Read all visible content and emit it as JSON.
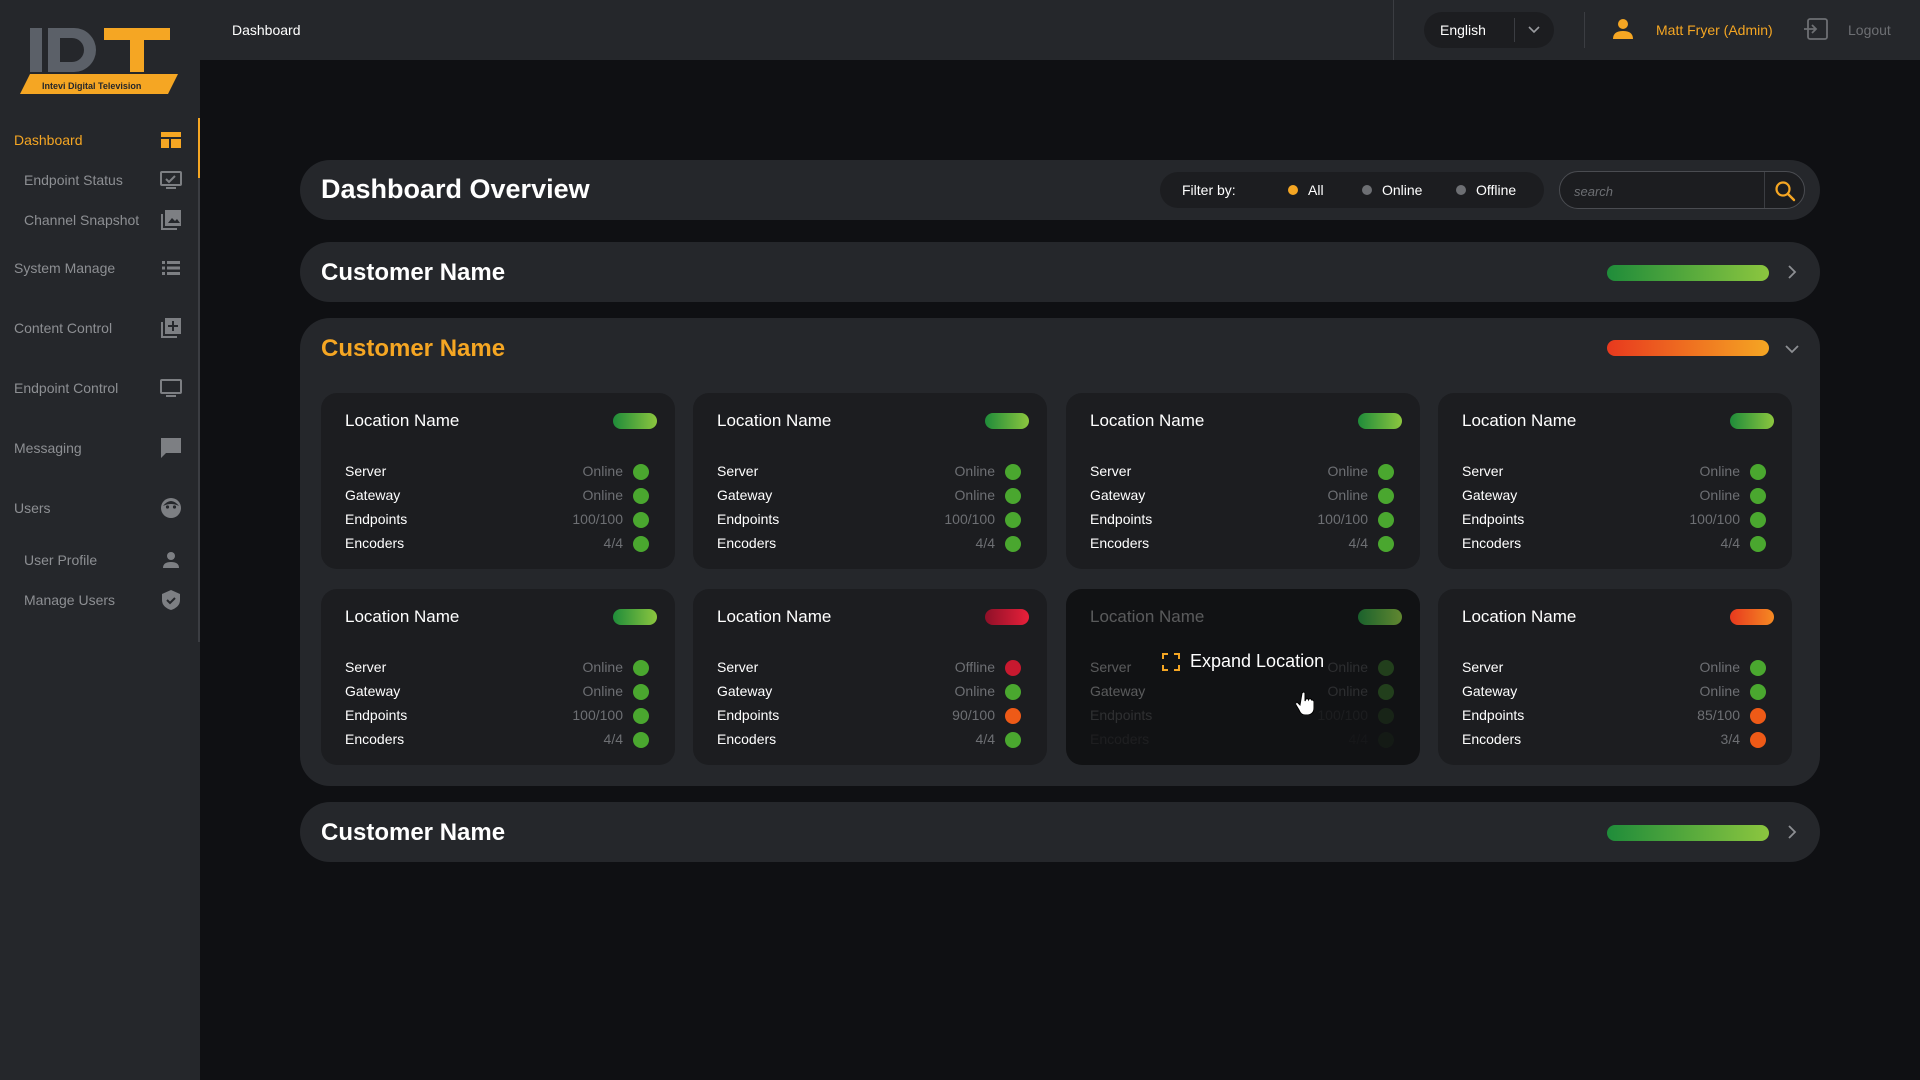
{
  "brand": {
    "logo_text": "IDT",
    "logo_tagline": "Intevi Digital Television",
    "accent_color": "#f5a623"
  },
  "sidebar": {
    "items": [
      {
        "label": "Dashboard",
        "icon": "dashboard-icon",
        "active": true
      },
      {
        "label": "Endpoint Status",
        "icon": "monitor-check-icon"
      },
      {
        "label": "Channel Snapshot",
        "icon": "image-stack-icon"
      },
      {
        "label": "System Manage",
        "icon": "list-icon"
      },
      {
        "label": "Content Control",
        "icon": "add-box-icon"
      },
      {
        "label": "Endpoint Control",
        "icon": "monitor-icon"
      },
      {
        "label": "Messaging",
        "icon": "chat-icon"
      },
      {
        "label": "Users",
        "icon": "face-icon"
      },
      {
        "label": "User Profile",
        "icon": "person-icon"
      },
      {
        "label": "Manage Users",
        "icon": "shield-check-icon"
      }
    ]
  },
  "topbar": {
    "breadcrumb": "Dashboard",
    "language": "English",
    "user_name": "Matt Fryer (Admin)",
    "logout_label": "Logout"
  },
  "overview": {
    "title": "Dashboard Overview",
    "filter_label": "Filter by:",
    "filter_options": [
      "All",
      "Online",
      "Offline"
    ],
    "filter_selected": "All",
    "search_placeholder": "search"
  },
  "customers": [
    {
      "name": "Customer Name",
      "status": "green",
      "expanded": false
    },
    {
      "name": "Customer Name",
      "status": "orange",
      "expanded": true,
      "locations": [
        {
          "name": "Location Name",
          "status": "green",
          "rows": [
            {
              "key": "Server",
              "value": "Online",
              "status": "green"
            },
            {
              "key": "Gateway",
              "value": "Online",
              "status": "green"
            },
            {
              "key": "Endpoints",
              "value": "100/100",
              "status": "green"
            },
            {
              "key": "Encoders",
              "value": "4/4",
              "status": "green"
            }
          ]
        },
        {
          "name": "Location Name",
          "status": "green",
          "rows": [
            {
              "key": "Server",
              "value": "Online",
              "status": "green"
            },
            {
              "key": "Gateway",
              "value": "Online",
              "status": "green"
            },
            {
              "key": "Endpoints",
              "value": "100/100",
              "status": "green"
            },
            {
              "key": "Encoders",
              "value": "4/4",
              "status": "green"
            }
          ]
        },
        {
          "name": "Location Name",
          "status": "green",
          "rows": [
            {
              "key": "Server",
              "value": "Online",
              "status": "green"
            },
            {
              "key": "Gateway",
              "value": "Online",
              "status": "green"
            },
            {
              "key": "Endpoints",
              "value": "100/100",
              "status": "green"
            },
            {
              "key": "Encoders",
              "value": "4/4",
              "status": "green"
            }
          ]
        },
        {
          "name": "Location Name",
          "status": "green",
          "rows": [
            {
              "key": "Server",
              "value": "Online",
              "status": "green"
            },
            {
              "key": "Gateway",
              "value": "Online",
              "status": "green"
            },
            {
              "key": "Endpoints",
              "value": "100/100",
              "status": "green"
            },
            {
              "key": "Encoders",
              "value": "4/4",
              "status": "green"
            }
          ]
        },
        {
          "name": "Location Name",
          "status": "green",
          "rows": [
            {
              "key": "Server",
              "value": "Online",
              "status": "green"
            },
            {
              "key": "Gateway",
              "value": "Online",
              "status": "green"
            },
            {
              "key": "Endpoints",
              "value": "100/100",
              "status": "green"
            },
            {
              "key": "Encoders",
              "value": "4/4",
              "status": "green"
            }
          ]
        },
        {
          "name": "Location Name",
          "status": "red",
          "rows": [
            {
              "key": "Server",
              "value": "Offline",
              "status": "red"
            },
            {
              "key": "Gateway",
              "value": "Online",
              "status": "green"
            },
            {
              "key": "Endpoints",
              "value": "90/100",
              "status": "orange"
            },
            {
              "key": "Encoders",
              "value": "4/4",
              "status": "green"
            }
          ]
        },
        {
          "name": "Location Name",
          "status": "green",
          "hovered": true,
          "hover_label": "Expand Location",
          "rows": [
            {
              "key": "Server",
              "value": "Online",
              "status": "green"
            },
            {
              "key": "Gateway",
              "value": "Online",
              "status": "green"
            },
            {
              "key": "Endpoints",
              "value": "100/100",
              "status": "green"
            },
            {
              "key": "Encoders",
              "value": "4/4",
              "status": "green"
            }
          ]
        },
        {
          "name": "Location Name",
          "status": "orange",
          "rows": [
            {
              "key": "Server",
              "value": "Online",
              "status": "green"
            },
            {
              "key": "Gateway",
              "value": "Online",
              "status": "green"
            },
            {
              "key": "Endpoints",
              "value": "85/100",
              "status": "orange"
            },
            {
              "key": "Encoders",
              "value": "3/4",
              "status": "orange"
            }
          ]
        }
      ]
    },
    {
      "name": "Customer Name",
      "status": "green",
      "expanded": false
    }
  ],
  "status_colors": {
    "green": "#4aa72f",
    "red": "#c8192f",
    "orange": "#ee5a17"
  }
}
